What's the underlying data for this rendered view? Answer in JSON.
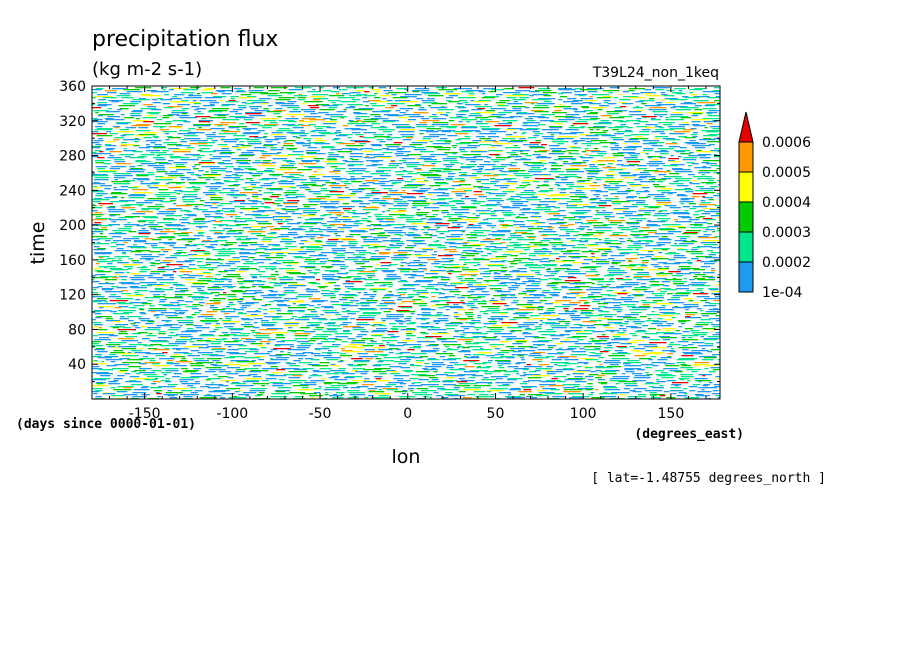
{
  "chart_data": {
    "type": "heatmap",
    "title": "precipitation flux",
    "units": "(kg m-2 s-1)",
    "experiment": "T39L24_non_1keq",
    "xlabel": "lon",
    "xunits": "(degrees_east)",
    "ylabel": "time",
    "yunits": "(days since 0000-01-01)",
    "annotation": "[ lat=-1.48755 degrees_north ]",
    "xlim": [
      -180,
      178
    ],
    "ylim": [
      0,
      360
    ],
    "xticks": [
      -150,
      -100,
      -50,
      0,
      50,
      100,
      150
    ],
    "xtick_labels": [
      "-150",
      "-100",
      "-50",
      "0",
      "50",
      "100",
      "150"
    ],
    "yticks": [
      40,
      80,
      120,
      160,
      200,
      240,
      280,
      320,
      360
    ],
    "ytick_labels": [
      "40",
      "80",
      "120",
      "160",
      "200",
      "240",
      "280",
      "320",
      "360"
    ],
    "colorbar": {
      "levels": [
        "1e-04",
        "0.0002",
        "0.0003",
        "0.0004",
        "0.0005",
        "0.0006"
      ],
      "colors": [
        "#1e9bf0",
        "#00e68c",
        "#00cc00",
        "#ffff00",
        "#ff9900",
        "#e60000"
      ],
      "extend": "max"
    },
    "grid": false
  }
}
